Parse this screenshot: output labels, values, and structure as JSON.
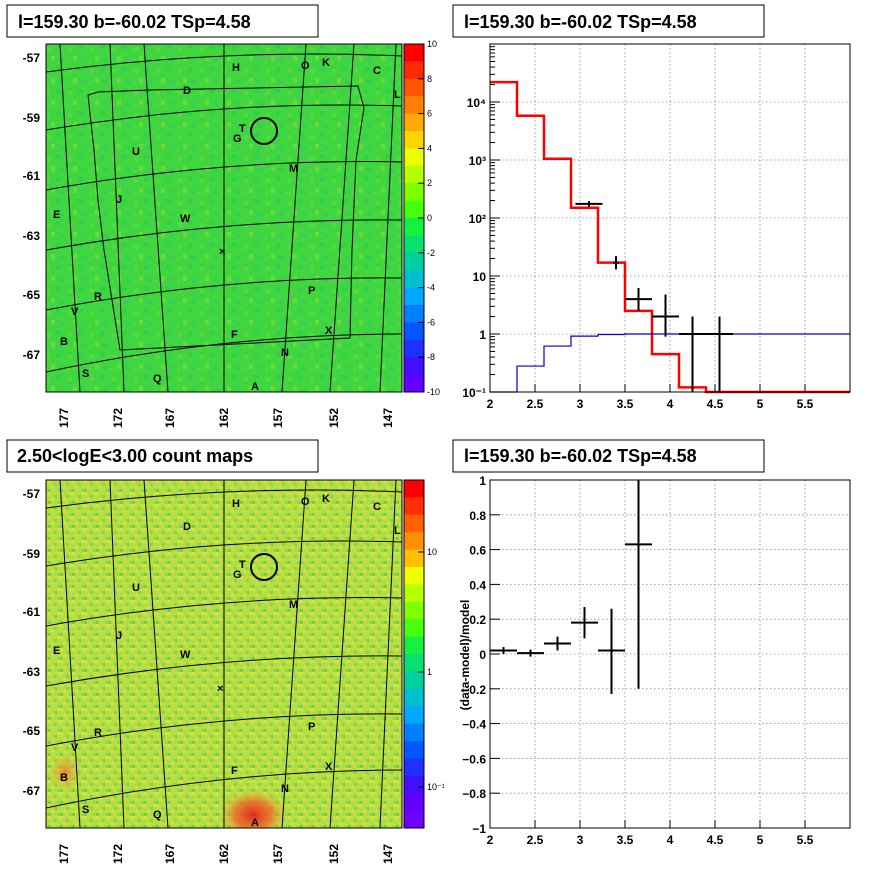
{
  "panels": {
    "tl_title": "l=159.30 b=-60.02 TSp=4.58",
    "tr_title": "l=159.30 b=-60.02 TSp=4.58",
    "bl_title": "2.50<logE<3.00 count maps",
    "br_title": "l=159.30 b=-60.02 TSp=4.58"
  },
  "map": {
    "lat_ticks": [
      "-57",
      "-59",
      "-61",
      "-63",
      "-65",
      "-67"
    ],
    "lon_ticks": [
      "177",
      "172",
      "167",
      "162",
      "157",
      "152",
      "147"
    ],
    "labels": [
      {
        "t": "H"
      },
      {
        "t": "O"
      },
      {
        "t": "K"
      },
      {
        "t": "C"
      },
      {
        "t": "L"
      },
      {
        "t": "D"
      },
      {
        "t": "T"
      },
      {
        "t": "G"
      },
      {
        "t": "U"
      },
      {
        "t": "M"
      },
      {
        "t": "J"
      },
      {
        "t": "E"
      },
      {
        "t": "W"
      },
      {
        "t": "P"
      },
      {
        "t": "R"
      },
      {
        "t": "V"
      },
      {
        "t": "X"
      },
      {
        "t": "F"
      },
      {
        "t": "B"
      },
      {
        "t": "N"
      },
      {
        "t": "S"
      },
      {
        "t": "Q"
      },
      {
        "t": "A"
      }
    ],
    "top_colorbar_ticks": [
      "10",
      "8",
      "6",
      "4",
      "2",
      "0",
      "-2",
      "-4",
      "-6",
      "-8",
      "-10"
    ],
    "bottom_colorbar_ticks": [
      "10",
      "1",
      "10⁻¹"
    ],
    "colors": {
      "field": "#3ed63e",
      "field_bottom": "#b8e04a",
      "hot": "#e63a1e"
    }
  },
  "chart_data": [
    {
      "type": "line",
      "panel": "spectrum",
      "title": "l=159.30 b=-60.02 TSp=4.58",
      "xlabel": "",
      "ylabel": "",
      "xlim": [
        2,
        6
      ],
      "ylim": [
        0.1,
        100000
      ],
      "yscale": "log",
      "grid": true,
      "x_ticks": [
        "2",
        "2.5",
        "3",
        "3.5",
        "4",
        "4.5",
        "5",
        "5.5"
      ],
      "y_ticks": [
        "10⁻¹",
        "1",
        "10",
        "10²",
        "10³",
        "10⁴"
      ],
      "series": [
        {
          "kind": "step",
          "color": "#ff0000",
          "edges": [
            2.0,
            2.3,
            2.6,
            2.9,
            3.2,
            3.5,
            3.8,
            4.1,
            4.4,
            6.0
          ],
          "values": [
            22000,
            5800,
            1050,
            150,
            17,
            2.5,
            0.45,
            0.12,
            0.08
          ]
        },
        {
          "kind": "step",
          "color": "#0000cc",
          "edges": [
            2.0,
            2.3,
            2.6,
            2.9,
            3.2,
            3.5,
            3.8,
            4.1,
            4.4,
            6.0
          ],
          "values": [
            0.06,
            0.28,
            0.62,
            0.92,
            0.98,
            1.0,
            1.0,
            1.0,
            1.0
          ]
        },
        {
          "kind": "errorbar",
          "color": "#000000",
          "points": [
            {
              "x": 3.1,
              "xerr": 0.15,
              "y": 175,
              "ylo": 155,
              "yhi": 195
            },
            {
              "x": 3.4,
              "xerr": 0.03,
              "y": 17,
              "ylo": 13,
              "yhi": 22
            },
            {
              "x": 3.65,
              "xerr": 0.15,
              "y": 4,
              "ylo": 2.5,
              "yhi": 6.2
            },
            {
              "x": 3.95,
              "xerr": 0.15,
              "y": 2,
              "ylo": 0.9,
              "yhi": 4.8
            },
            {
              "x": 4.25,
              "xerr": 0.15,
              "y": 1,
              "ylo": 0.1,
              "yhi": 2
            },
            {
              "x": 4.55,
              "xerr": 0.15,
              "y": 1,
              "ylo": 0.1,
              "yhi": 2
            }
          ]
        }
      ]
    },
    {
      "type": "scatter",
      "panel": "residual",
      "title": "l=159.30 b=-60.02 TSp=4.58",
      "xlabel": "",
      "ylabel": "(data-model)/model",
      "xlim": [
        2,
        6
      ],
      "ylim": [
        -1,
        1
      ],
      "grid": true,
      "x_ticks": [
        "2",
        "2.5",
        "3",
        "3.5",
        "4",
        "4.5",
        "5",
        "5.5"
      ],
      "y_ticks": [
        "−1",
        "−0.8",
        "−0.6",
        "−0.4",
        "−0.2",
        "0",
        "0.2",
        "0.4",
        "0.6",
        "0.8",
        "1"
      ],
      "points": [
        {
          "x": 2.15,
          "xerr": 0.15,
          "y": 0.02,
          "ylo": 0.0,
          "yhi": 0.04
        },
        {
          "x": 2.45,
          "xerr": 0.15,
          "y": 0.005,
          "ylo": -0.015,
          "yhi": 0.025
        },
        {
          "x": 2.75,
          "xerr": 0.15,
          "y": 0.06,
          "ylo": 0.02,
          "yhi": 0.1
        },
        {
          "x": 3.05,
          "xerr": 0.15,
          "y": 0.18,
          "ylo": 0.09,
          "yhi": 0.27
        },
        {
          "x": 3.35,
          "xerr": 0.15,
          "y": 0.02,
          "ylo": -0.23,
          "yhi": 0.26
        },
        {
          "x": 3.65,
          "xerr": 0.15,
          "y": 0.63,
          "ylo": -0.2,
          "yhi": 1.0
        }
      ]
    }
  ]
}
